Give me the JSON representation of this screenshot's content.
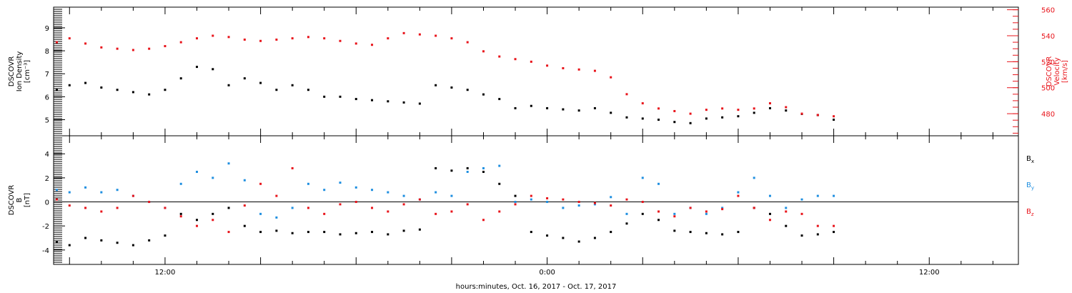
{
  "figure": {
    "xlabel": "hours:minutes, Oct. 16, 2017 - Oct. 17, 2017"
  },
  "chart_data": [
    {
      "type": "scatter",
      "panel": "plasma",
      "x_unit": "hours since 2017-10-16 00:00 UTC",
      "xlim": [
        8.5,
        38.8
      ],
      "x_ticks": [
        {
          "value": 12,
          "label": "12:00"
        },
        {
          "value": 24,
          "label": "0:00"
        },
        {
          "value": 36,
          "label": "12:00"
        }
      ],
      "left_axis": {
        "label_lines": [
          "DSCOVR",
          "Ion Density",
          "[cm⁻³]"
        ],
        "ylim": [
          4.3,
          9.9
        ],
        "ticks": [
          5,
          6,
          7,
          8,
          9
        ],
        "color": "#000000"
      },
      "right_axis": {
        "label_lines": [
          "DSCOVR",
          "Velocity",
          "[km/s]"
        ],
        "ylim": [
          463,
          562
        ],
        "ticks": [
          480,
          500,
          520,
          540,
          560
        ],
        "color": "#e8141b"
      },
      "grid": false,
      "series": [
        {
          "axis": "left",
          "color": "#000000",
          "x": [
            8.6,
            9.0,
            9.5,
            10.0,
            10.5,
            11.0,
            11.5,
            12.0,
            12.5,
            13.0,
            13.5,
            14.0,
            14.5,
            15.0,
            15.5,
            16.0,
            16.5,
            17.0,
            17.5,
            18.0,
            18.5,
            19.0,
            19.5,
            20.0,
            20.5,
            21.0,
            21.5,
            22.0,
            22.5,
            23.0,
            23.5,
            24.0,
            24.5,
            25.0,
            25.5,
            26.0,
            26.5,
            27.0,
            27.5,
            28.0,
            28.5,
            29.0,
            29.5,
            30.0,
            30.5,
            31.0,
            31.5,
            32.0,
            32.5,
            33.0
          ],
          "y": [
            6.3,
            6.5,
            6.6,
            6.4,
            6.3,
            6.2,
            6.1,
            6.3,
            6.8,
            7.3,
            7.2,
            6.5,
            6.8,
            6.6,
            6.3,
            6.5,
            6.3,
            6.0,
            6.0,
            5.9,
            5.85,
            5.8,
            5.75,
            5.7,
            6.5,
            6.4,
            6.3,
            6.1,
            5.9,
            5.5,
            5.6,
            5.5,
            5.45,
            5.4,
            5.5,
            5.3,
            5.1,
            5.05,
            5.0,
            4.9,
            4.85,
            5.05,
            5.1,
            5.15,
            5.3,
            5.5,
            5.4,
            5.25,
            5.2,
            5.0
          ]
        },
        {
          "axis": "right",
          "color": "#e8141b",
          "x": [
            8.6,
            9.0,
            9.5,
            10.0,
            10.5,
            11.0,
            11.5,
            12.0,
            12.5,
            13.0,
            13.5,
            14.0,
            14.5,
            15.0,
            15.5,
            16.0,
            16.5,
            17.0,
            17.5,
            18.0,
            18.5,
            19.0,
            19.5,
            20.0,
            20.5,
            21.0,
            21.5,
            22.0,
            22.5,
            23.0,
            23.5,
            24.0,
            24.5,
            25.0,
            25.5,
            26.0,
            26.5,
            27.0,
            27.5,
            28.0,
            28.5,
            29.0,
            29.5,
            30.0,
            30.5,
            31.0,
            31.5,
            32.0,
            32.5,
            33.0
          ],
          "y": [
            535,
            538,
            534,
            531,
            530,
            529,
            530,
            532,
            535,
            538,
            540,
            539,
            537,
            536,
            537,
            538,
            539,
            538,
            536,
            534,
            533,
            538,
            542,
            541,
            540,
            538,
            535,
            528,
            524,
            522,
            520,
            517,
            515,
            514,
            513,
            508,
            495,
            488,
            484,
            482,
            480,
            483,
            484,
            483,
            484,
            488,
            485,
            480,
            479,
            478
          ]
        }
      ]
    },
    {
      "type": "scatter",
      "panel": "magnetic field",
      "x_unit": "hours since 2017-10-16 00:00 UTC",
      "xlim": [
        8.5,
        38.8
      ],
      "left_axis": {
        "label_lines": [
          "DSCOVR",
          "B",
          "[nT]"
        ],
        "ylim": [
          -5.2,
          5.5
        ],
        "ticks": [
          -4,
          -2,
          0,
          2,
          4
        ]
      },
      "zero_line": true,
      "grid": false,
      "legend": {
        "position": "right",
        "entries": [
          {
            "text": "B",
            "sub": "x"
          },
          {
            "text": "B",
            "sub": "y"
          },
          {
            "text": "B",
            "sub": "z"
          }
        ]
      },
      "series": [
        {
          "color": "#000000",
          "x": [
            8.6,
            9.0,
            9.5,
            10.0,
            10.5,
            11.0,
            11.5,
            12.0,
            12.5,
            13.0,
            13.5,
            14.0,
            14.5,
            15.0,
            15.5,
            16.0,
            16.5,
            17.0,
            17.5,
            18.0,
            18.5,
            19.0,
            19.5,
            20.0,
            20.5,
            21.0,
            21.5,
            22.0,
            22.5,
            23.0,
            23.5,
            24.0,
            24.5,
            25.0,
            25.5,
            26.0,
            26.5,
            27.0,
            27.5,
            28.0,
            28.5,
            29.0,
            29.5,
            30.0,
            30.5,
            31.0,
            31.5,
            32.0,
            32.5,
            33.0
          ],
          "y": [
            -3.3,
            -3.6,
            -3.0,
            -3.2,
            -3.4,
            -3.6,
            -3.2,
            -2.8,
            -1.0,
            -1.5,
            -1.0,
            -0.5,
            -2.0,
            -2.5,
            -2.4,
            -2.6,
            -2.5,
            -2.5,
            -2.7,
            -2.6,
            -2.5,
            -2.7,
            -2.4,
            -2.3,
            2.8,
            2.6,
            2.8,
            2.5,
            1.5,
            0.5,
            -2.5,
            -2.8,
            -3.0,
            -3.3,
            -3.0,
            -2.5,
            -1.8,
            -1.0,
            -1.5,
            -2.4,
            -2.5,
            -2.6,
            -2.7,
            -2.5,
            -0.5,
            -1.0,
            -2.0,
            -2.8,
            -2.7,
            -2.5
          ]
        },
        {
          "color": "#1f8fe0",
          "x": [
            8.6,
            9.0,
            9.5,
            10.0,
            10.5,
            11.0,
            11.5,
            12.0,
            12.5,
            13.0,
            13.5,
            14.0,
            14.5,
            15.0,
            15.5,
            16.0,
            16.5,
            17.0,
            17.5,
            18.0,
            18.5,
            19.0,
            19.5,
            20.0,
            20.5,
            21.0,
            21.5,
            22.0,
            22.5,
            23.0,
            23.5,
            24.0,
            24.5,
            25.0,
            25.5,
            26.0,
            26.5,
            27.0,
            27.5,
            28.0,
            28.5,
            29.0,
            29.5,
            30.0,
            30.5,
            31.0,
            31.5,
            32.0,
            32.5,
            33.0
          ],
          "y": [
            1.0,
            0.8,
            1.2,
            0.8,
            1.0,
            0.5,
            0.0,
            -0.5,
            1.5,
            2.5,
            2.0,
            3.2,
            1.8,
            -1.0,
            -1.3,
            -0.5,
            1.5,
            1.0,
            1.6,
            1.2,
            1.0,
            0.8,
            0.5,
            0.2,
            0.8,
            0.5,
            2.5,
            2.8,
            3.0,
            0.0,
            0.2,
            0.0,
            -0.5,
            -0.3,
            -0.2,
            0.4,
            -1.0,
            2.0,
            1.5,
            -1.0,
            -0.5,
            -1.0,
            -0.5,
            0.8,
            2.0,
            0.5,
            -0.5,
            0.2,
            0.5,
            0.5
          ]
        },
        {
          "color": "#e8141b",
          "x": [
            8.6,
            9.0,
            9.5,
            10.0,
            10.5,
            11.0,
            11.5,
            12.0,
            12.5,
            13.0,
            13.5,
            14.0,
            14.5,
            15.0,
            15.5,
            16.0,
            16.5,
            17.0,
            17.5,
            18.0,
            18.5,
            19.0,
            19.5,
            20.0,
            20.5,
            21.0,
            21.5,
            22.0,
            22.5,
            23.0,
            23.5,
            24.0,
            24.5,
            25.0,
            25.5,
            26.0,
            26.5,
            27.0,
            27.5,
            28.0,
            28.5,
            29.0,
            29.5,
            30.0,
            30.5,
            31.0,
            31.5,
            32.0,
            32.5,
            33.0
          ],
          "y": [
            0.2,
            -0.3,
            -0.5,
            -0.8,
            -0.5,
            0.5,
            0.0,
            -0.5,
            -1.2,
            -2.0,
            -1.5,
            -2.5,
            -0.3,
            1.5,
            0.5,
            2.8,
            -0.5,
            -1.0,
            -0.2,
            0.0,
            -0.5,
            -0.8,
            -0.2,
            0.2,
            -1.0,
            -0.8,
            -0.2,
            -1.5,
            -0.8,
            -0.2,
            0.5,
            0.3,
            0.2,
            0.0,
            -0.1,
            -0.3,
            0.2,
            0.0,
            -0.8,
            -1.2,
            -0.5,
            -0.8,
            -0.6,
            0.5,
            -0.5,
            -1.5,
            -0.8,
            -1.0,
            -2.0,
            -2.0
          ]
        }
      ]
    }
  ]
}
